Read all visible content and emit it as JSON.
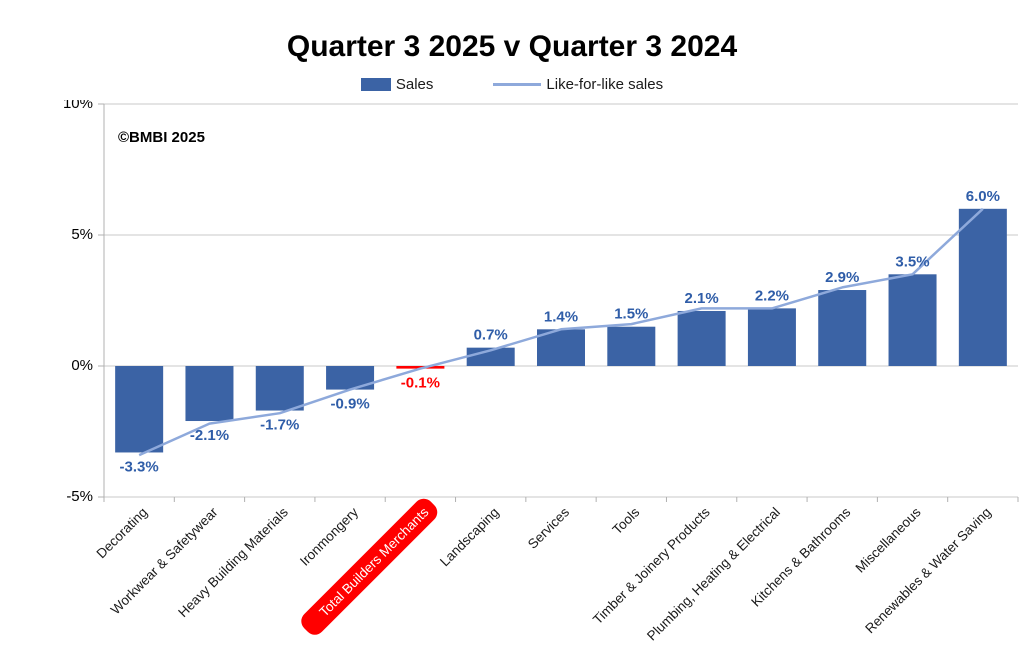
{
  "title": "Quarter 3 2025 v Quarter 3 2024",
  "legend": {
    "sales": "Sales",
    "lfl": "Like-for-like sales"
  },
  "watermark": "©BMBI 2025",
  "colors": {
    "bar": "#3B63A5",
    "bar_highlight": "#FF0000",
    "line": "#8EA9DB",
    "label": "#2F5DA8",
    "label_highlight": "#FF0000",
    "grid": "#C8C8C8",
    "axis": "#B0B0B0",
    "axis_text": "#000000",
    "category_text": "#1a1a1a",
    "highlight_text": "#FFFFFF"
  },
  "chart_data": {
    "type": "bar",
    "title": "Quarter 3 2025 v Quarter 3 2024",
    "xlabel": "",
    "ylabel": "",
    "ylim": [
      -5,
      10
    ],
    "grid": "horizontal",
    "legend_position": "top",
    "categories": [
      "Decorating",
      "Workwear & Safetywear",
      "Heavy Building Materials",
      "Ironmongery",
      "Total Builders Merchants",
      "Landscaping",
      "Services",
      "Tools",
      "Timber & Joinery Products",
      "Plumbing, Heating & Electrical",
      "Kitchens & Bathrooms",
      "Miscellaneous",
      "Renewables & Water Saving"
    ],
    "series": [
      {
        "name": "Sales",
        "type": "bar",
        "values": [
          -3.3,
          -2.1,
          -1.7,
          -0.9,
          -0.1,
          0.7,
          1.4,
          1.5,
          2.1,
          2.2,
          2.9,
          3.5,
          6.0
        ],
        "labels": [
          "-3.3%",
          "-2.1%",
          "-1.7%",
          "-0.9%",
          "-0.1%",
          "0.7%",
          "1.4%",
          "1.5%",
          "2.1%",
          "2.2%",
          "2.9%",
          "3.5%",
          "6.0%"
        ]
      },
      {
        "name": "Like-for-like sales",
        "type": "line",
        "values": [
          -3.4,
          -2.2,
          -1.8,
          -0.9,
          -0.1,
          0.6,
          1.4,
          1.6,
          2.2,
          2.2,
          3.0,
          3.5,
          6.0
        ]
      }
    ],
    "highlight_index": 4,
    "highlight_category": "Total Builders Merchants",
    "yticks": [
      {
        "value": 10,
        "label": "10%"
      },
      {
        "value": 5,
        "label": "5%"
      },
      {
        "value": 0,
        "label": "0%"
      },
      {
        "value": -5,
        "label": "-5%"
      }
    ]
  }
}
